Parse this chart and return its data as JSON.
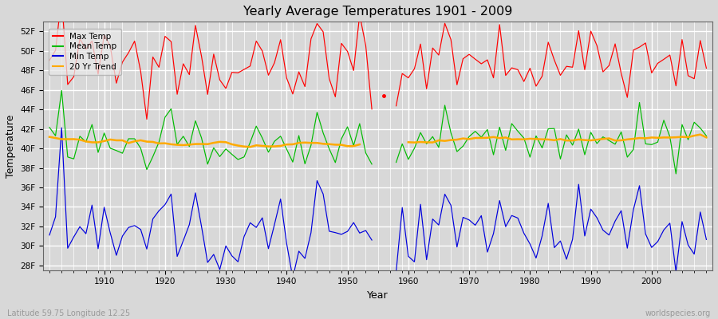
{
  "title": "Yearly Average Temperatures 1901 - 2009",
  "xlabel": "Year",
  "ylabel": "Temperature",
  "lat_lon_text": "Latitude 59.75 Longitude 12.25",
  "watermark": "worldspecies.org",
  "yticks": [
    "28F",
    "30F",
    "32F",
    "34F",
    "36F",
    "38F",
    "40F",
    "42F",
    "44F",
    "46F",
    "48F",
    "50F",
    "52F"
  ],
  "yvalues": [
    28,
    30,
    32,
    34,
    36,
    38,
    40,
    42,
    44,
    46,
    48,
    50,
    52
  ],
  "ylim": [
    27.5,
    53
  ],
  "xlim": [
    1900,
    2010
  ],
  "fig_bg_color": "#d8d8d8",
  "plot_bg_color": "#d8d8d8",
  "legend_bg": "#e8e8e8",
  "max_color": "#ff0000",
  "mean_color": "#00bb00",
  "min_color": "#0000dd",
  "trend_color": "#ffaa00",
  "grid_color": "#ffffff",
  "start_year": 1901,
  "end_year": 2009,
  "gap_start": 1955,
  "gap_end": 1957
}
